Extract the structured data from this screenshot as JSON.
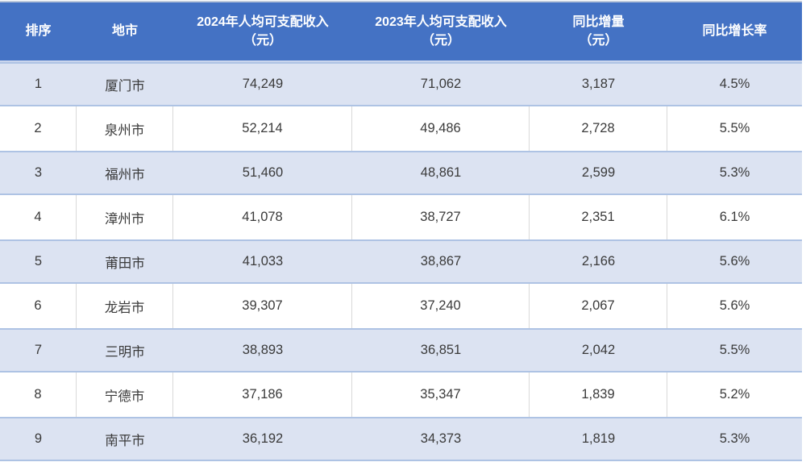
{
  "colors": {
    "header_bg": "#4472C4",
    "header_text": "#FFFFFF",
    "alt_row_bg": "#DCE3F2",
    "alt_row_border": "#AEC3E4",
    "plain_row_divider": "#D9D9D9",
    "body_text": "#3A3A3A"
  },
  "chart_data": {
    "type": "table",
    "title": "",
    "columns": [
      {
        "label": "排序",
        "sub": ""
      },
      {
        "label": "地市",
        "sub": ""
      },
      {
        "label": "2024年人均可支配收入",
        "sub": "（元）"
      },
      {
        "label": "2023年人均可支配收入",
        "sub": "（元）"
      },
      {
        "label": "同比增量",
        "sub": "（元）"
      },
      {
        "label": "同比增长率",
        "sub": ""
      }
    ],
    "rows": [
      {
        "rank": "1",
        "city": "厦门市",
        "income2024": "74,249",
        "income2023": "71,062",
        "delta": "3,187",
        "growth": "4.5%"
      },
      {
        "rank": "2",
        "city": "泉州市",
        "income2024": "52,214",
        "income2023": "49,486",
        "delta": "2,728",
        "growth": "5.5%"
      },
      {
        "rank": "3",
        "city": "福州市",
        "income2024": "51,460",
        "income2023": "48,861",
        "delta": "2,599",
        "growth": "5.3%"
      },
      {
        "rank": "4",
        "city": "漳州市",
        "income2024": "41,078",
        "income2023": "38,727",
        "delta": "2,351",
        "growth": "6.1%"
      },
      {
        "rank": "5",
        "city": "莆田市",
        "income2024": "41,033",
        "income2023": "38,867",
        "delta": "2,166",
        "growth": "5.6%"
      },
      {
        "rank": "6",
        "city": "龙岩市",
        "income2024": "39,307",
        "income2023": "37,240",
        "delta": "2,067",
        "growth": "5.6%"
      },
      {
        "rank": "7",
        "city": "三明市",
        "income2024": "38,893",
        "income2023": "36,851",
        "delta": "2,042",
        "growth": "5.5%"
      },
      {
        "rank": "8",
        "city": "宁德市",
        "income2024": "37,186",
        "income2023": "35,347",
        "delta": "1,839",
        "growth": "5.2%"
      },
      {
        "rank": "9",
        "city": "南平市",
        "income2024": "36,192",
        "income2023": "34,373",
        "delta": "1,819",
        "growth": "5.3%"
      }
    ]
  }
}
